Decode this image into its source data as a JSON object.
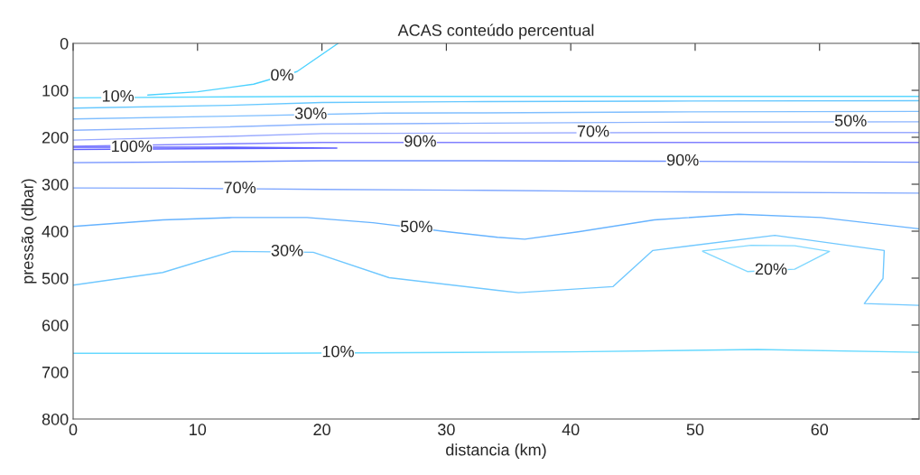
{
  "chart_data": {
    "type": "line",
    "title": "ACAS conteúdo percentual",
    "xlabel": "distancia (km)",
    "ylabel": "pressão (dbar)",
    "xlim": [
      0,
      68
    ],
    "xticks": [
      0,
      10,
      20,
      30,
      40,
      50,
      60
    ],
    "ylim": [
      800,
      0
    ],
    "yticks": [
      0,
      100,
      200,
      300,
      400,
      500,
      600,
      700,
      800
    ],
    "grid": false,
    "marker": "none",
    "line_style": "solid",
    "series": [
      {
        "color": "#4dd2ff",
        "x": [
          6,
          10,
          14.5,
          18,
          21.3
        ],
        "values": [
          110,
          103,
          87,
          60,
          0
        ]
      },
      {
        "color": "#5ad7ff",
        "x": [
          0,
          12.5,
          20,
          33,
          47,
          68
        ],
        "values": [
          116,
          114,
          113,
          113,
          113,
          113
        ]
      },
      {
        "color": "#66c8ff",
        "x": [
          0,
          12.5,
          20,
          33,
          47,
          68
        ],
        "values": [
          138,
          132,
          126,
          124,
          123,
          122
        ]
      },
      {
        "color": "#80bfff",
        "x": [
          0,
          12.5,
          25,
          33,
          47,
          68
        ],
        "values": [
          161,
          155,
          148.5,
          148,
          146,
          145
        ]
      },
      {
        "color": "#8cb4ff",
        "x": [
          0,
          12.5,
          20,
          33,
          47,
          68
        ],
        "values": [
          185,
          178,
          172,
          170,
          168,
          167
        ]
      },
      {
        "color": "#99aaff",
        "x": [
          0,
          12.5,
          20,
          33,
          47,
          68
        ],
        "values": [
          206,
          198,
          192,
          191,
          190,
          190
        ]
      },
      {
        "color": "#8080ff",
        "x": [
          0,
          12.5,
          20,
          33,
          47,
          68
        ],
        "values": [
          219,
          214,
          211,
          211,
          211,
          211
        ]
      },
      {
        "color": "#6060ff",
        "x": [
          0,
          12.5,
          21.2,
          12.5,
          0
        ],
        "values": [
          221,
          221,
          223,
          224,
          226
        ]
      },
      {
        "color": "#7090ff",
        "x": [
          0,
          12.5,
          20,
          33,
          47,
          68
        ],
        "values": [
          254,
          252,
          250,
          250,
          251,
          253
        ]
      },
      {
        "color": "#80a8ff",
        "x": [
          0,
          8,
          20,
          33,
          47,
          68
        ],
        "values": [
          308,
          308.5,
          311,
          313,
          316,
          319
        ]
      },
      {
        "color": "#66b3ff",
        "x": [
          0,
          7.2,
          12.8,
          18.8,
          24.1,
          30,
          34.1,
          36.3,
          40.7,
          46.7,
          53.5,
          60.1,
          68
        ],
        "values": [
          390,
          376,
          371,
          371,
          382,
          401,
          413,
          417,
          401,
          376,
          364,
          371,
          395
        ]
      },
      {
        "color": "#70c8ff",
        "x": [
          0,
          7.2,
          12.8,
          19.3,
          25.4,
          34.1,
          35.8,
          43.4,
          46.6,
          56.4,
          65.2,
          65.1,
          63.6,
          68
        ],
        "values": [
          515,
          488,
          443,
          445,
          499,
          526,
          531,
          518,
          441,
          409,
          441,
          501,
          554,
          558
        ]
      },
      {
        "color": "#80d8ff",
        "x": [
          50.6,
          54.5,
          58,
          60.8,
          58,
          54.2,
          50.6
        ],
        "values": [
          442,
          430,
          431,
          443,
          481,
          486,
          443
        ]
      },
      {
        "color": "#66d9ff",
        "x": [
          0,
          15,
          40,
          55,
          68
        ],
        "values": [
          660,
          660,
          657,
          652,
          658
        ]
      }
    ],
    "annotations": [
      {
        "text": "0%",
        "x": 16.8,
        "y": 70
      },
      {
        "text": "10%",
        "x": 3.6,
        "y": 115
      },
      {
        "text": "30%",
        "x": 19.1,
        "y": 152
      },
      {
        "text": "100%",
        "x": 4.7,
        "y": 222
      },
      {
        "text": "70%",
        "x": 13.4,
        "y": 310
      },
      {
        "text": "50%",
        "x": 27.6,
        "y": 393
      },
      {
        "text": "30%",
        "x": 17.2,
        "y": 444
      },
      {
        "text": "10%",
        "x": 21.3,
        "y": 659
      },
      {
        "text": "90%",
        "x": 27.9,
        "y": 211
      },
      {
        "text": "70%",
        "x": 41.8,
        "y": 190
      },
      {
        "text": "50%",
        "x": 62.5,
        "y": 167.5
      },
      {
        "text": "90%",
        "x": 49,
        "y": 251.3
      },
      {
        "text": "20%",
        "x": 56.1,
        "y": 483.5
      }
    ]
  }
}
